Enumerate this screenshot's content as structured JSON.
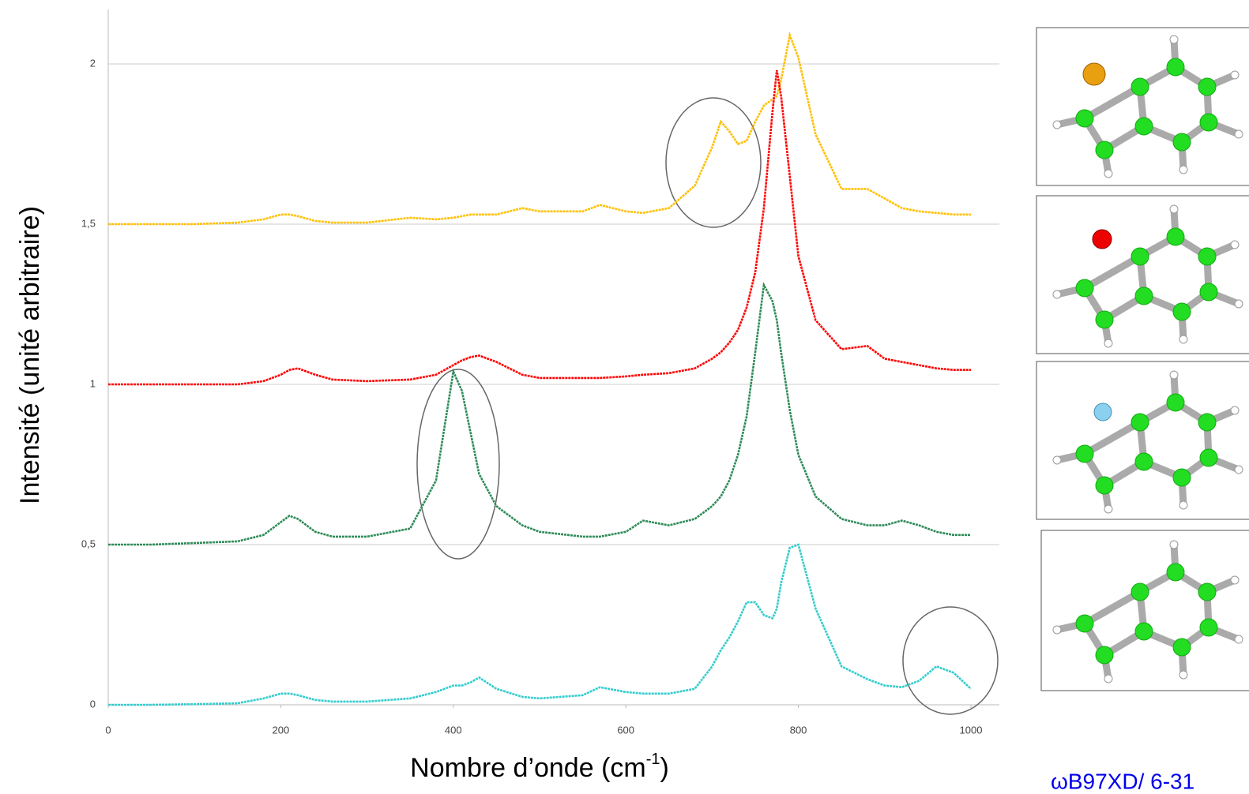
{
  "chart_data": {
    "type": "line",
    "ylabel": "Intensité (unité arbitraire)",
    "xlabel": [
      "Nombre d’onde (cm",
      "-1",
      ")"
    ],
    "annotation": "ωB97XD/ 6-31",
    "xlim": [
      0,
      1033
    ],
    "ylim": [
      0,
      2.17
    ],
    "xticks": [
      0,
      200,
      400,
      600,
      800,
      1000
    ],
    "yticks": [
      0,
      {
        "value": 0.5,
        "label": "0,5"
      },
      1,
      {
        "value": 1.5,
        "label": "1,5"
      },
      2
    ],
    "grid": true,
    "x": [
      0,
      50,
      100,
      150,
      180,
      200,
      210,
      220,
      240,
      260,
      300,
      350,
      380,
      400,
      410,
      420,
      430,
      450,
      480,
      500,
      550,
      570,
      600,
      620,
      650,
      680,
      700,
      710,
      720,
      730,
      740,
      750,
      760,
      770,
      775,
      780,
      790,
      800,
      820,
      850,
      880,
      900,
      920,
      940,
      960,
      980,
      1000
    ],
    "series": [
      {
        "color": "#ffc000",
        "values": [
          1.5,
          1.5,
          1.5,
          1.505,
          1.515,
          1.53,
          1.53,
          1.525,
          1.51,
          1.505,
          1.505,
          1.52,
          1.515,
          1.52,
          1.525,
          1.53,
          1.53,
          1.53,
          1.55,
          1.54,
          1.54,
          1.56,
          1.54,
          1.535,
          1.55,
          1.62,
          1.74,
          1.82,
          1.79,
          1.75,
          1.76,
          1.82,
          1.87,
          1.89,
          1.9,
          1.95,
          2.09,
          2.02,
          1.78,
          1.61,
          1.61,
          1.58,
          1.55,
          1.54,
          1.535,
          1.53,
          1.53
        ]
      },
      {
        "color": "#ff0000",
        "values": [
          1,
          1,
          1,
          1,
          1.01,
          1.03,
          1.045,
          1.05,
          1.03,
          1.015,
          1.01,
          1.015,
          1.03,
          1.06,
          1.075,
          1.085,
          1.09,
          1.07,
          1.03,
          1.02,
          1.02,
          1.02,
          1.025,
          1.03,
          1.035,
          1.05,
          1.08,
          1.1,
          1.13,
          1.17,
          1.24,
          1.35,
          1.55,
          1.85,
          1.98,
          1.9,
          1.65,
          1.4,
          1.2,
          1.11,
          1.12,
          1.08,
          1.07,
          1.06,
          1.05,
          1.045,
          1.045
        ]
      },
      {
        "color": "#2e8b57",
        "values": [
          0.5,
          0.5,
          0.505,
          0.51,
          0.53,
          0.57,
          0.59,
          0.58,
          0.54,
          0.525,
          0.525,
          0.55,
          0.7,
          1.04,
          0.98,
          0.85,
          0.72,
          0.62,
          0.56,
          0.54,
          0.525,
          0.525,
          0.54,
          0.575,
          0.56,
          0.58,
          0.62,
          0.65,
          0.7,
          0.78,
          0.9,
          1.1,
          1.31,
          1.26,
          1.2,
          1.1,
          0.92,
          0.78,
          0.65,
          0.58,
          0.56,
          0.56,
          0.575,
          0.56,
          0.54,
          0.53,
          0.53
        ]
      },
      {
        "color": "#33cccc",
        "values": [
          0,
          0,
          0.002,
          0.005,
          0.02,
          0.035,
          0.035,
          0.03,
          0.015,
          0.01,
          0.01,
          0.02,
          0.04,
          0.06,
          0.06,
          0.07,
          0.085,
          0.05,
          0.025,
          0.02,
          0.03,
          0.055,
          0.04,
          0.035,
          0.035,
          0.05,
          0.12,
          0.17,
          0.21,
          0.26,
          0.32,
          0.32,
          0.28,
          0.27,
          0.3,
          0.38,
          0.49,
          0.5,
          0.3,
          0.12,
          0.08,
          0.06,
          0.055,
          0.075,
          0.12,
          0.1,
          0.05
        ]
      }
    ]
  }
}
